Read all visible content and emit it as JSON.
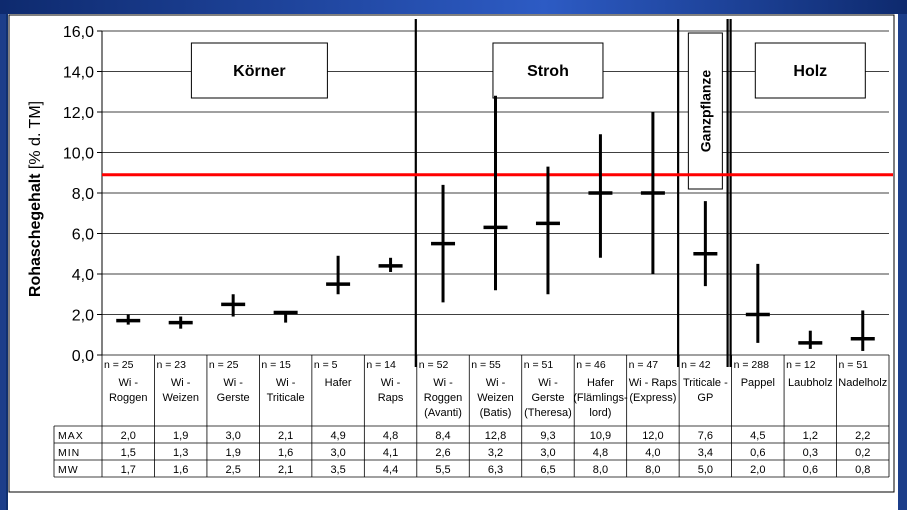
{
  "colors": {
    "background": "#1c3e8a",
    "threshold_line": "#ff0000",
    "marks": "#000000"
  },
  "chart_data": {
    "type": "range",
    "ylabel": "Rohaschegehalt",
    "ylabel_unit": "[% d. TM]",
    "ylim": [
      0,
      16
    ],
    "yticks": [
      "0,0",
      "2,0",
      "4,0",
      "6,0",
      "8,0",
      "10,0",
      "12,0",
      "14,0",
      "16,0"
    ],
    "grid": true,
    "threshold": 8.9,
    "groups": [
      {
        "label": "Körner",
        "from": 0,
        "to": 5
      },
      {
        "label": "Stroh",
        "from": 6,
        "to": 10
      },
      {
        "label": "Ganzpflanze",
        "from": 11,
        "to": 11
      },
      {
        "label": "Holz",
        "from": 12,
        "to": 14
      }
    ],
    "categories": [
      {
        "n": "n = 25",
        "label": [
          "Wi -",
          "Roggen"
        ],
        "max": 2.0,
        "min": 1.5,
        "mean": 1.7
      },
      {
        "n": "n = 23",
        "label": [
          "Wi -",
          "Weizen"
        ],
        "max": 1.9,
        "min": 1.3,
        "mean": 1.6
      },
      {
        "n": "n = 25",
        "label": [
          "Wi -",
          "Gerste"
        ],
        "max": 3.0,
        "min": 1.9,
        "mean": 2.5
      },
      {
        "n": "n = 15",
        "label": [
          "Wi -",
          "Triticale"
        ],
        "max": 2.1,
        "min": 1.6,
        "mean": 2.1
      },
      {
        "n": "n = 5",
        "label": [
          "Hafer"
        ],
        "max": 4.9,
        "min": 3.0,
        "mean": 3.5
      },
      {
        "n": "n = 14",
        "label": [
          "Wi -",
          "Raps"
        ],
        "max": 4.8,
        "min": 4.1,
        "mean": 4.4
      },
      {
        "n": "n = 52",
        "label": [
          "Wi -",
          "Roggen",
          "(Avanti)"
        ],
        "max": 8.4,
        "min": 2.6,
        "mean": 5.5
      },
      {
        "n": "n = 55",
        "label": [
          "Wi -",
          "Weizen",
          "(Batis)"
        ],
        "max": 12.8,
        "min": 3.2,
        "mean": 6.3
      },
      {
        "n": "n = 51",
        "label": [
          "Wi -",
          "Gerste",
          "(Theresa)"
        ],
        "max": 9.3,
        "min": 3.0,
        "mean": 6.5
      },
      {
        "n": "n = 46",
        "label": [
          "Hafer",
          "(Flämlings-",
          "lord)"
        ],
        "max": 10.9,
        "min": 4.8,
        "mean": 8.0
      },
      {
        "n": "n = 47",
        "label": [
          "Wi - Raps",
          "(Express)"
        ],
        "max": 12.0,
        "min": 4.0,
        "mean": 8.0
      },
      {
        "n": "n = 42",
        "label": [
          "Triticale -",
          "GP"
        ],
        "max": 7.6,
        "min": 3.4,
        "mean": 5.0
      },
      {
        "n": "n = 288",
        "label": [
          "Pappel"
        ],
        "max": 4.5,
        "min": 0.6,
        "mean": 2.0
      },
      {
        "n": "n = 12",
        "label": [
          "Laubholz"
        ],
        "max": 1.2,
        "min": 0.3,
        "mean": 0.6
      },
      {
        "n": "n = 51",
        "label": [
          "Nadelholz"
        ],
        "max": 2.2,
        "min": 0.2,
        "mean": 0.8
      }
    ],
    "table": {
      "row_labels": [
        "MAX",
        "MIN",
        "MW"
      ],
      "max": [
        "2,0",
        "1,9",
        "3,0",
        "2,1",
        "4,9",
        "4,8",
        "8,4",
        "12,8",
        "9,3",
        "10,9",
        "12,0",
        "7,6",
        "4,5",
        "1,2",
        "2,2"
      ],
      "min": [
        "1,5",
        "1,3",
        "1,9",
        "1,6",
        "3,0",
        "4,1",
        "2,6",
        "3,2",
        "3,0",
        "4,8",
        "4,0",
        "3,4",
        "0,6",
        "0,3",
        "0,2"
      ],
      "mw": [
        "1,7",
        "1,6",
        "2,5",
        "2,1",
        "3,5",
        "4,4",
        "5,5",
        "6,3",
        "6,5",
        "8,0",
        "8,0",
        "5,0",
        "2,0",
        "0,6",
        "0,8"
      ]
    }
  }
}
